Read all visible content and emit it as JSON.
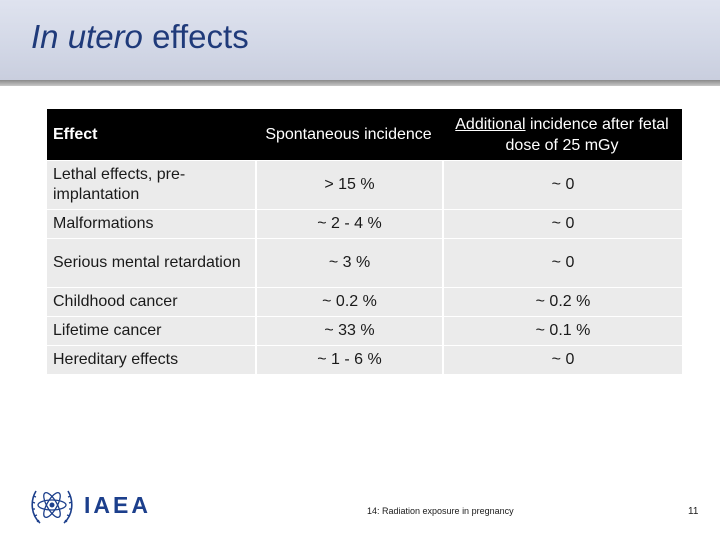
{
  "slide": {
    "title_italic": "In utero",
    "title_rest": " effects"
  },
  "table": {
    "headers": {
      "effect": "Effect",
      "spontaneous": "Spontaneous incidence",
      "additional_underlined": "Additional",
      "additional_rest": " incidence after fetal dose of 25 mGy"
    },
    "rows": [
      {
        "effect": "Lethal effects, pre-implantation",
        "spontaneous": "> 15 %",
        "additional": "~ 0"
      },
      {
        "effect": "Malformations",
        "spontaneous": "~ 2 - 4 %",
        "additional": "~ 0"
      },
      {
        "effect": "Serious mental retardation",
        "spontaneous": "~ 3 %",
        "additional": "~ 0"
      },
      {
        "effect": "Childhood cancer",
        "spontaneous": "~ 0.2 %",
        "additional": "~ 0.2 %"
      },
      {
        "effect": "Lifetime cancer",
        "spontaneous": "~ 33 %",
        "additional": "~ 0.1 %"
      },
      {
        "effect": "Hereditary effects",
        "spontaneous": "~ 1 - 6 %",
        "additional": "~ 0"
      }
    ]
  },
  "footer": {
    "logo_text": "IAEA",
    "caption": "14: Radiation exposure in pregnancy",
    "page_number": "11"
  },
  "colors": {
    "title": "#1f3a7a",
    "header_band": "#d2d7e6",
    "table_header_bg": "#000000",
    "table_cell_bg": "#ebebeb",
    "logo": "#1c3f8c"
  }
}
